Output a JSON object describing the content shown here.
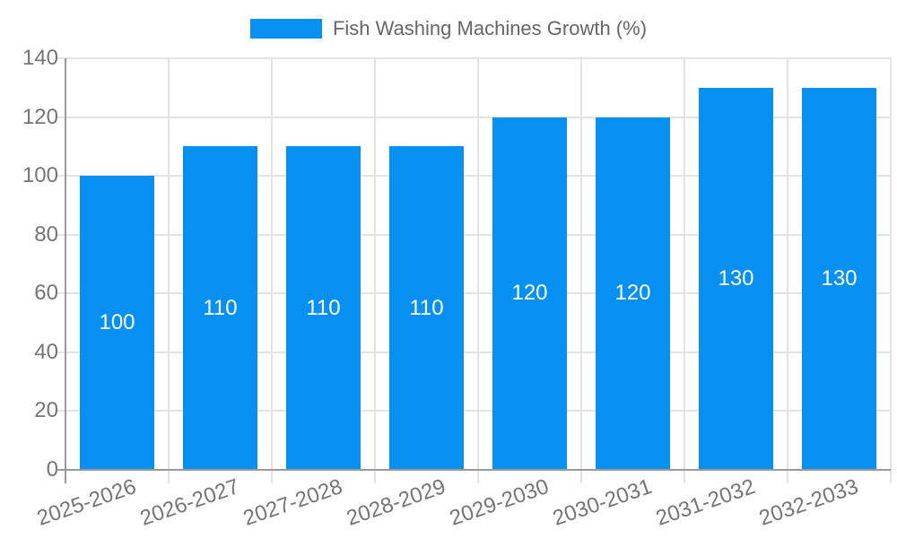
{
  "legend": {
    "label": "Fish Washing Machines Growth (%)"
  },
  "chart_data": {
    "type": "bar",
    "title": "",
    "series_name": "Fish Washing Machines Growth (%)",
    "categories": [
      "2025-2026",
      "2026-2027",
      "2027-2028",
      "2028-2029",
      "2029-2030",
      "2030-2031",
      "2031-2032",
      "2032-2033"
    ],
    "values": [
      100,
      110,
      110,
      110,
      120,
      120,
      130,
      130
    ],
    "value_labels": [
      "100",
      "110",
      "110",
      "110",
      "120",
      "120",
      "130",
      "130"
    ],
    "ylim": [
      0,
      140
    ],
    "ytick_step": 20,
    "yticks": [
      0,
      20,
      40,
      60,
      80,
      100,
      120,
      140
    ],
    "grid": true,
    "legend_position": "top-center",
    "x_label_rotation_deg": -19,
    "colors": {
      "bar": "#0590f2",
      "value_label": "#ffffff",
      "axis_label": "#757575",
      "legend_text": "#666666",
      "gridline": "#e3e3e3",
      "axis_line": "#999999",
      "background": "#ffffff"
    }
  }
}
